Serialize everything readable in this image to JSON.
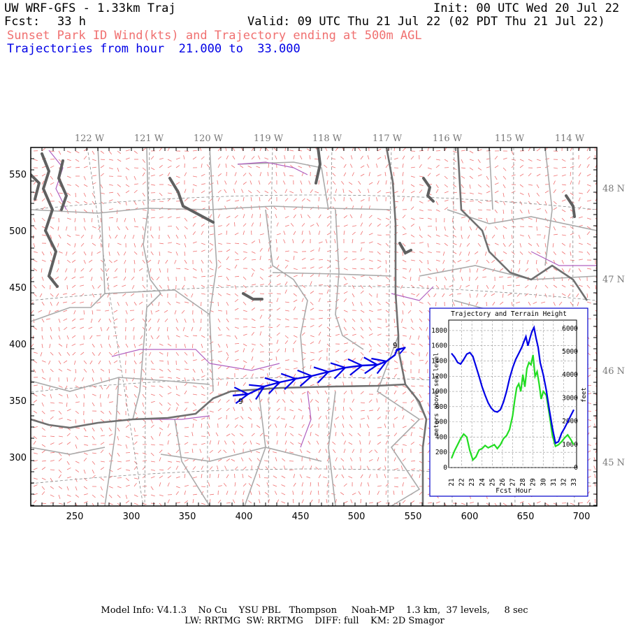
{
  "header": {
    "model_title": "UW WRF-GFS - 1.33km Traj",
    "init": "Init: 00 UTC Wed 20 Jul 22",
    "fcst_label": "Fcst:",
    "fcst_hours": "33 h",
    "valid": "Valid: 09 UTC Thu 21 Jul 22 (02 PDT Thu 21 Jul 22)",
    "product_line": "Sunset Park ID Wind(kts) and Trajectory ending at 500m AGL",
    "traj_prefix": "Trajectories from hour",
    "traj_start": "21.000",
    "traj_to": "to",
    "traj_end": "33.000"
  },
  "map": {
    "lon_labels": [
      "122 W",
      "121 W",
      "120 W",
      "119 W",
      "118 W",
      "117 W",
      "116 W",
      "115 W",
      "114 W"
    ],
    "lat_labels": [
      "48 N",
      "47 N",
      "46 N",
      "45 N"
    ],
    "y_labels": [
      "550",
      "500",
      "450",
      "400",
      "350",
      "300"
    ],
    "x_labels": [
      "250",
      "300",
      "350",
      "400",
      "450",
      "500",
      "550",
      "600",
      "650",
      "700"
    ],
    "traj_hour_labels": [
      "9",
      "9"
    ],
    "colors": {
      "wind_barbs": "#f07070",
      "trajectory": "#0000e6",
      "state_lines": "#707070",
      "county_lines": "#aaaaaa",
      "rivers": "#b060c0",
      "water": "#606060",
      "grid": "#888888"
    }
  },
  "inset": {
    "title": "Trajectory and Terrain Height",
    "y_left_label": "meters above sea level",
    "y_right_label": "feet",
    "x_label": "Fcst Hour",
    "left_ticks": [
      "0",
      "200",
      "400",
      "600",
      "800",
      "1000",
      "1200",
      "1400",
      "1600",
      "1800"
    ],
    "right_ticks": [
      "0",
      "1000",
      "2000",
      "3000",
      "4000",
      "5000",
      "6000"
    ],
    "hour_ticks": [
      "21",
      "22",
      "23",
      "24",
      "25",
      "26",
      "27",
      "28",
      "29",
      "30",
      "31",
      "32",
      "33"
    ],
    "series_colors": {
      "trajectory": "#0000e6",
      "terrain": "#22dd22"
    }
  },
  "chart_data": {
    "type": "line",
    "title": "Trajectory and Terrain Height",
    "xlabel": "Fcst Hour",
    "ylabel": "meters above sea level",
    "ylabel_right": "feet",
    "xlim": [
      21,
      33
    ],
    "ylim": [
      0,
      1900
    ],
    "grid": true,
    "series": [
      {
        "x": [
          21,
          21.3,
          21.6,
          21.9,
          22.2,
          22.5,
          22.8,
          23.1,
          23.4,
          23.7,
          24,
          24.3,
          24.6,
          24.9,
          25.2,
          25.5,
          25.8,
          26.1,
          26.4,
          26.7,
          27,
          27.3,
          27.6,
          27.9,
          28.1,
          28.3,
          28.5,
          28.7,
          28.9,
          29.1,
          29.3,
          29.5,
          29.7,
          30,
          30.3,
          30.6,
          30.9,
          31.2,
          31.5,
          31.8,
          32.1,
          32.4,
          32.7,
          33
        ],
        "y": [
          1500,
          1450,
          1380,
          1360,
          1420,
          1490,
          1510,
          1460,
          1330,
          1200,
          1060,
          950,
          850,
          780,
          740,
          730,
          760,
          860,
          1000,
          1170,
          1310,
          1420,
          1500,
          1580,
          1650,
          1720,
          1600,
          1700,
          1790,
          1840,
          1700,
          1580,
          1380,
          1220,
          1020,
          760,
          520,
          320,
          340,
          450,
          520,
          600,
          680,
          760
        ]
      },
      {
        "x": [
          21,
          21.3,
          21.6,
          21.9,
          22.2,
          22.5,
          22.8,
          23.1,
          23.4,
          23.7,
          24,
          24.3,
          24.6,
          24.9,
          25.2,
          25.5,
          25.8,
          26.1,
          26.4,
          26.7,
          27,
          27.2,
          27.4,
          27.6,
          27.8,
          28,
          28.2,
          28.4,
          28.6,
          28.8,
          29,
          29.2,
          29.4,
          29.6,
          29.8,
          30,
          30.3,
          30.6,
          30.9,
          31.2,
          31.5,
          31.8,
          32.1,
          32.4,
          32.7,
          33
        ],
        "y": [
          120,
          220,
          300,
          380,
          440,
          400,
          220,
          100,
          140,
          230,
          250,
          290,
          260,
          280,
          300,
          250,
          300,
          380,
          420,
          500,
          680,
          880,
          1050,
          1100,
          1000,
          1220,
          1060,
          1300,
          1380,
          1350,
          1480,
          1200,
          1260,
          1100,
          900,
          1000,
          950,
          700,
          420,
          280,
          300,
          340,
          390,
          430,
          370,
          300
        ]
      }
    ]
  },
  "footer": {
    "line1": "Model Info: V4.1.3    No Cu    YSU PBL   Thompson     Noah-MP    1.3 km,  37 levels,     8 sec",
    "line2": "LW: RRTMG  SW: RRTMG    DIFF: full    KM: 2D Smagor"
  }
}
